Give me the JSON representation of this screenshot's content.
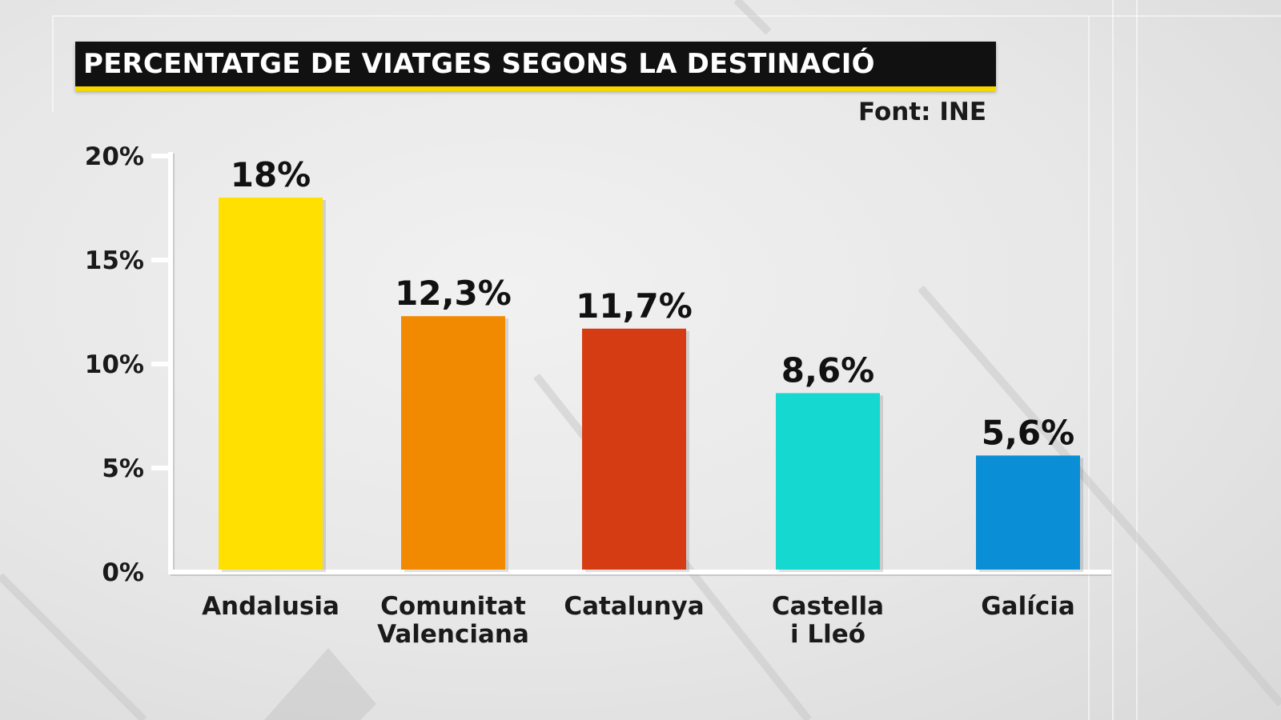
{
  "header": {
    "title": "PERCENTATGE DE VIATGES SEGONS LA DESTINACIÓ",
    "source": "Font: INE"
  },
  "colors": {
    "title_bg": "#111111",
    "title_underline": "#f5d800",
    "axis": "#ffffff",
    "text": "#1a1a1a"
  },
  "chart_data": {
    "type": "bar",
    "title": "PERCENTATGE DE VIATGES SEGONS LA DESTINACIÓ",
    "xlabel": "",
    "ylabel": "",
    "ylim": [
      0,
      20
    ],
    "yticks": [
      0,
      5,
      10,
      15,
      20
    ],
    "ytick_labels": [
      "0%",
      "5%",
      "10%",
      "15%",
      "20%"
    ],
    "grid": false,
    "legend": "none",
    "categories": [
      [
        "Andalusia"
      ],
      [
        "Comunitat",
        "Valenciana"
      ],
      [
        "Catalunya"
      ],
      [
        "Castella",
        "i Lleó"
      ],
      [
        "Galícia"
      ]
    ],
    "values": [
      18,
      12.3,
      11.7,
      8.6,
      5.6
    ],
    "value_labels": [
      "18%",
      "12,3%",
      "11,7%",
      "8,6%",
      "5,6%"
    ],
    "bar_colors": [
      "#ffe000",
      "#f18a00",
      "#d63c14",
      "#15d8d0",
      "#0a8fd6"
    ]
  }
}
